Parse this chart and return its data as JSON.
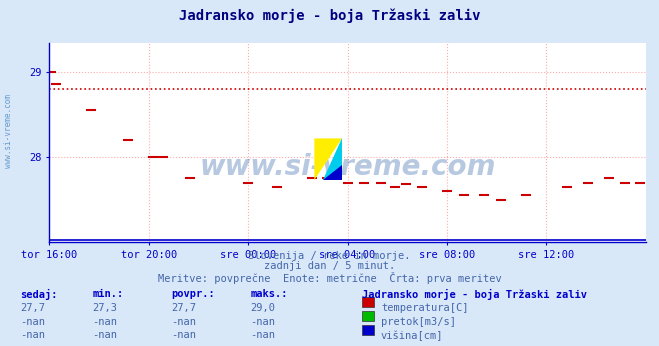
{
  "title": "Jadransko morje - boja Tržaski zaliv",
  "subtitle1": "Slovenija / reke in morje.",
  "subtitle2": "zadnji dan / 5 minut.",
  "subtitle3": "Meritve: povprečne  Enote: metrične  Črta: prva meritev",
  "bg_color": "#d8e8f8",
  "plot_bg_color": "#ffffff",
  "title_color": "#000080",
  "subtitle_color": "#4466aa",
  "axis_color": "#0000cc",
  "grid_color": "#ffaaaa",
  "watermark_color": "#4477aa",
  "xmin": 0,
  "xmax": 288,
  "ymin": 27.0,
  "ymax": 29.333,
  "yticks": [
    28.0,
    29.0
  ],
  "xlabel_ticks": [
    0,
    48,
    96,
    144,
    192,
    240
  ],
  "xlabel_labels": [
    "tor 16:00",
    "tor 20:00",
    "sre 00:00",
    "sre 04:00",
    "sre 08:00",
    "sre 12:00"
  ],
  "temp_color": "#cc0000",
  "pretok_color": "#00bb00",
  "visina_color": "#0000cc",
  "temp_avg_y": 28.8,
  "sedaj": "27,7",
  "min_val": "27,3",
  "povpr_val": "27,7",
  "maks_val": "29,0",
  "legend_title": "Jadransko morje - boja Tržaski zaliv",
  "temp_data_x": [
    1,
    3,
    20,
    38,
    50,
    55,
    68,
    96,
    110,
    127,
    134,
    144,
    152,
    160,
    167,
    172,
    180,
    192,
    200,
    210,
    218,
    230,
    250,
    260,
    270,
    278,
    285
  ],
  "temp_data_y": [
    29.0,
    28.85,
    28.55,
    28.2,
    28.0,
    28.0,
    27.75,
    27.7,
    27.65,
    27.75,
    27.75,
    27.7,
    27.7,
    27.7,
    27.65,
    27.68,
    27.65,
    27.6,
    27.55,
    27.55,
    27.5,
    27.55,
    27.65,
    27.7,
    27.75,
    27.7,
    27.7
  ],
  "visina_y": 27.03
}
